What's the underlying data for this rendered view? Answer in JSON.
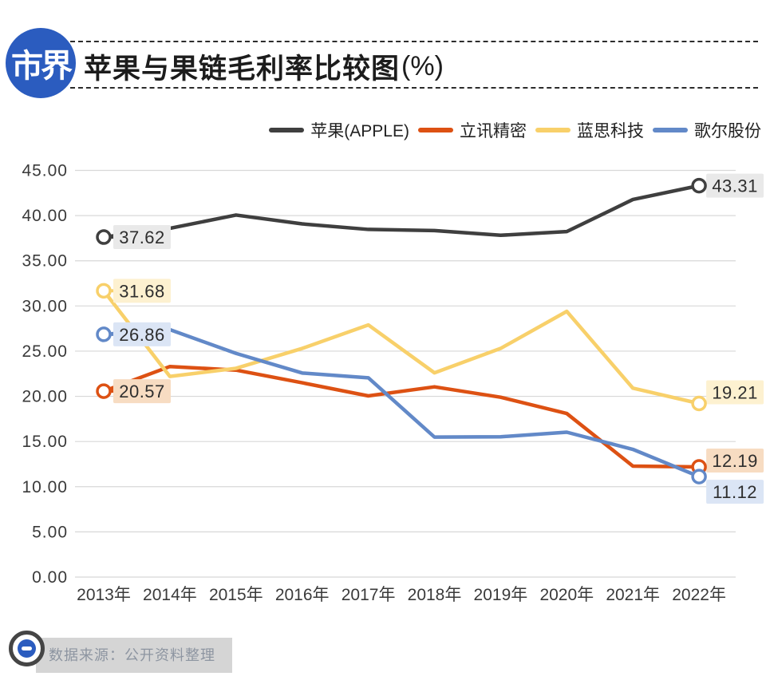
{
  "header": {
    "logo_text": "市界",
    "title": "苹果与果链毛利率比较图",
    "title_suffix": "(%)"
  },
  "legend": {
    "items": [
      {
        "key": "apple",
        "label": "苹果(APPLE)",
        "color": "#3f3f3f"
      },
      {
        "key": "luxshare",
        "label": "立讯精密",
        "color": "#dd5113"
      },
      {
        "key": "lens",
        "label": "蓝思科技",
        "color": "#f8d06a"
      },
      {
        "key": "goertek",
        "label": "歌尔股份",
        "color": "#6289c8"
      }
    ]
  },
  "chart_data": {
    "type": "line",
    "title": "苹果与果链毛利率比较图(%)",
    "xlabel": "",
    "ylabel": "",
    "x": [
      "2013年",
      "2014年",
      "2015年",
      "2016年",
      "2017年",
      "2018年",
      "2019年",
      "2020年",
      "2021年",
      "2022年"
    ],
    "ylim": [
      0,
      45
    ],
    "ytick_step": 5,
    "ytick_labels": [
      "0.00",
      "5.00",
      "10.00",
      "15.00",
      "20.00",
      "25.00",
      "30.00",
      "35.00",
      "40.00",
      "45.00"
    ],
    "grid": true,
    "legend_position": "top-right",
    "series": [
      {
        "key": "apple",
        "name": "苹果(APPLE)",
        "color": "#3f3f3f",
        "label_bg": "#e9e9e9",
        "values": [
          37.62,
          38.59,
          40.06,
          39.08,
          38.47,
          38.34,
          37.82,
          38.23,
          41.78,
          43.31
        ],
        "first_label": "37.62",
        "last_label": "43.31"
      },
      {
        "key": "luxshare",
        "name": "立讯精密",
        "color": "#dd5113",
        "label_bg": "#f7dcc2",
        "values": [
          20.57,
          23.3,
          22.9,
          21.5,
          20.05,
          21.05,
          19.9,
          18.1,
          12.28,
          12.19
        ],
        "first_label": "20.57",
        "last_label": "12.19"
      },
      {
        "key": "lens",
        "name": "蓝思科技",
        "color": "#f8d06a",
        "label_bg": "#fdf1d0",
        "values": [
          31.68,
          22.2,
          23.1,
          25.3,
          27.9,
          22.6,
          25.3,
          29.4,
          20.9,
          19.21
        ],
        "first_label": "31.68",
        "last_label": "19.21"
      },
      {
        "key": "goertek",
        "name": "歌尔股份",
        "color": "#6289c8",
        "label_bg": "#dbe5f5",
        "values": [
          26.86,
          27.38,
          24.75,
          22.58,
          22.05,
          15.49,
          15.52,
          16.03,
          14.13,
          11.12
        ],
        "first_label": "26.86",
        "last_label": "11.12"
      }
    ]
  },
  "footer": {
    "source_text": "数据来源：公开资料整理"
  }
}
